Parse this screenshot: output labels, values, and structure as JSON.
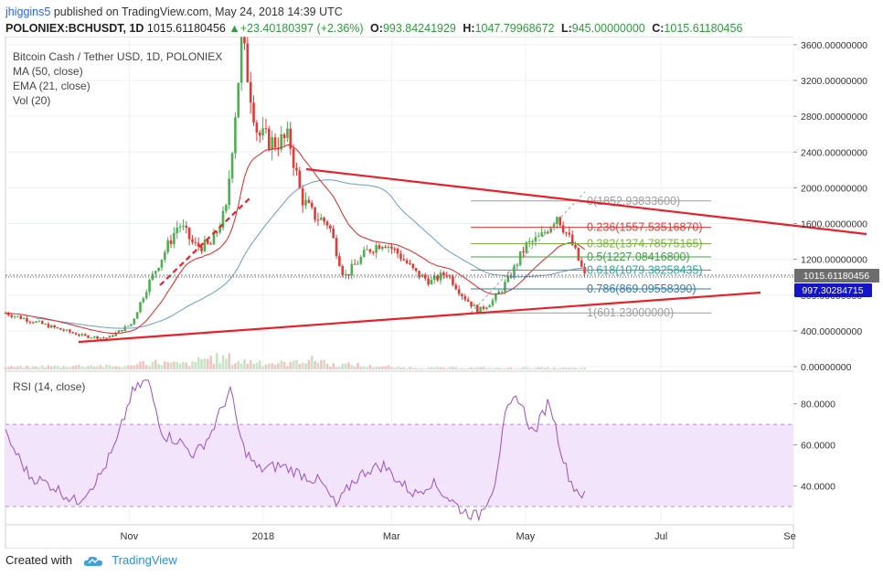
{
  "header": {
    "user": "jhiggins5",
    "published_text": "published on TradingView.com, May 24, 2018 14:39 UTC",
    "symbol": "POLONIEX:BCHUSDT, 1D",
    "price": "1015.61180456",
    "change_arrow": "▲",
    "change": "+23.40180397 (+2.36%)",
    "o_label": "O:",
    "o_value": "993.84241929",
    "h_label": "H:",
    "h_value": "1047.79968672",
    "l_label": "L:",
    "l_value": "945.00000000",
    "c_label": "C:",
    "c_value": "1015.61180456"
  },
  "legend": {
    "title": "Bitcoin Cash / Tether USD, 1D, POLONIEX",
    "ma": "MA (50, close)",
    "ema": "EMA (21, close)",
    "vol": "Vol (20)",
    "rsi": "RSI (14, close)"
  },
  "footer": {
    "created_with": "Created with",
    "brand": "TradingView"
  },
  "colors": {
    "up": "#4caf50",
    "down": "#e53935",
    "ma": "#6b9bc7",
    "ema": "#e02424",
    "trend": "#e8202a",
    "rsi": "#9b4fc2",
    "rsi_band": "#f2e4fb",
    "last_price_bg": "#6d6d6d",
    "fib_price_bg": "#1414c8"
  },
  "chart_data": [
    {
      "type": "candlestick",
      "title": "Bitcoin Cash / Tether USD, 1D, POLONIEX",
      "ylim": [
        0,
        3650
      ],
      "x_ticks": [
        "Nov",
        "2018",
        "Mar",
        "May",
        "Jul",
        "Se"
      ],
      "y_ticks": [
        "3600.00000000",
        "3200.00000000",
        "2800.00000000",
        "2400.00000000",
        "2000.00000000",
        "1600.00000000",
        "1200.00000000",
        "800.00000000",
        "400.00000000",
        "0.00000000"
      ],
      "last_price_label": "1015.61180456",
      "fib_price_label": "997.30284715",
      "price_path": [
        {
          "t": 0,
          "p": 600
        },
        {
          "t": 0.03,
          "p": 520
        },
        {
          "t": 0.06,
          "p": 440
        },
        {
          "t": 0.1,
          "p": 340
        },
        {
          "t": 0.13,
          "p": 320
        },
        {
          "t": 0.16,
          "p": 480
        },
        {
          "t": 0.18,
          "p": 900
        },
        {
          "t": 0.2,
          "p": 1250
        },
        {
          "t": 0.22,
          "p": 1600
        },
        {
          "t": 0.24,
          "p": 1350
        },
        {
          "t": 0.26,
          "p": 1350
        },
        {
          "t": 0.28,
          "p": 1750
        },
        {
          "t": 0.3,
          "p": 3650
        },
        {
          "t": 0.32,
          "p": 2600
        },
        {
          "t": 0.34,
          "p": 2500
        },
        {
          "t": 0.36,
          "p": 2550
        },
        {
          "t": 0.375,
          "p": 1900
        },
        {
          "t": 0.39,
          "p": 1700
        },
        {
          "t": 0.41,
          "p": 1600
        },
        {
          "t": 0.43,
          "p": 1000
        },
        {
          "t": 0.44,
          "p": 1100
        },
        {
          "t": 0.46,
          "p": 1300
        },
        {
          "t": 0.48,
          "p": 1400
        },
        {
          "t": 0.5,
          "p": 1250
        },
        {
          "t": 0.52,
          "p": 1050
        },
        {
          "t": 0.54,
          "p": 950
        },
        {
          "t": 0.56,
          "p": 1050
        },
        {
          "t": 0.58,
          "p": 800
        },
        {
          "t": 0.6,
          "p": 620
        },
        {
          "t": 0.62,
          "p": 750
        },
        {
          "t": 0.64,
          "p": 1000
        },
        {
          "t": 0.66,
          "p": 1350
        },
        {
          "t": 0.68,
          "p": 1450
        },
        {
          "t": 0.7,
          "p": 1700
        },
        {
          "t": 0.72,
          "p": 1350
        },
        {
          "t": 0.735,
          "p": 1015
        }
      ],
      "volume_path": [
        0.08,
        0.1,
        0.12,
        0.1,
        0.22,
        0.18,
        0.35,
        0.25,
        0.2,
        0.3,
        0.15,
        0.1,
        0.06,
        0.05,
        0.05,
        0.04,
        0.05,
        0.04
      ],
      "fib_levels": [
        {
          "ratio": "0",
          "label": "0(1852.93833600)",
          "value": 1852.938336,
          "color": "#9e9e9e"
        },
        {
          "ratio": "0.236",
          "label": "0.236(1557.53516870)",
          "value": 1557.5351687,
          "color": "#e53935"
        },
        {
          "ratio": "0.382",
          "label": "0.382(1374.78575165)",
          "value": 1374.78575165,
          "color": "#7cb342"
        },
        {
          "ratio": "0.5",
          "label": "0.5(1227.08416800)",
          "value": 1227.084168,
          "color": "#43a047"
        },
        {
          "ratio": "0.618",
          "label": "0.618(1079.38258435)",
          "value": 1079.38258435,
          "color": "#26a69a"
        },
        {
          "ratio": "0.786",
          "label": "0.786(869.09558390)",
          "value": 869.0955839,
          "color": "#2e7dac"
        },
        {
          "ratio": "1",
          "label": "1(601.23000000)",
          "value": 601.23,
          "color": "#9e9e9e"
        }
      ]
    },
    {
      "type": "line",
      "title": "RSI (14, close)",
      "ylim": [
        22,
        95
      ],
      "y_ticks": [
        "80.0000",
        "60.0000",
        "40.0000"
      ],
      "band": [
        30,
        70
      ],
      "rsi_path": [
        {
          "t": 0,
          "v": 65
        },
        {
          "t": 0.03,
          "v": 45
        },
        {
          "t": 0.06,
          "v": 40
        },
        {
          "t": 0.09,
          "v": 32
        },
        {
          "t": 0.12,
          "v": 45
        },
        {
          "t": 0.14,
          "v": 60
        },
        {
          "t": 0.16,
          "v": 85
        },
        {
          "t": 0.18,
          "v": 92
        },
        {
          "t": 0.2,
          "v": 65
        },
        {
          "t": 0.22,
          "v": 62
        },
        {
          "t": 0.24,
          "v": 55
        },
        {
          "t": 0.26,
          "v": 65
        },
        {
          "t": 0.285,
          "v": 87
        },
        {
          "t": 0.3,
          "v": 60
        },
        {
          "t": 0.32,
          "v": 48
        },
        {
          "t": 0.35,
          "v": 50
        },
        {
          "t": 0.38,
          "v": 45
        },
        {
          "t": 0.4,
          "v": 42
        },
        {
          "t": 0.42,
          "v": 30
        },
        {
          "t": 0.44,
          "v": 42
        },
        {
          "t": 0.46,
          "v": 48
        },
        {
          "t": 0.48,
          "v": 50
        },
        {
          "t": 0.5,
          "v": 42
        },
        {
          "t": 0.52,
          "v": 36
        },
        {
          "t": 0.54,
          "v": 42
        },
        {
          "t": 0.56,
          "v": 35
        },
        {
          "t": 0.58,
          "v": 28
        },
        {
          "t": 0.6,
          "v": 25
        },
        {
          "t": 0.62,
          "v": 40
        },
        {
          "t": 0.635,
          "v": 75
        },
        {
          "t": 0.65,
          "v": 84
        },
        {
          "t": 0.67,
          "v": 65
        },
        {
          "t": 0.69,
          "v": 82
        },
        {
          "t": 0.71,
          "v": 50
        },
        {
          "t": 0.72,
          "v": 40
        },
        {
          "t": 0.735,
          "v": 35
        }
      ]
    }
  ]
}
